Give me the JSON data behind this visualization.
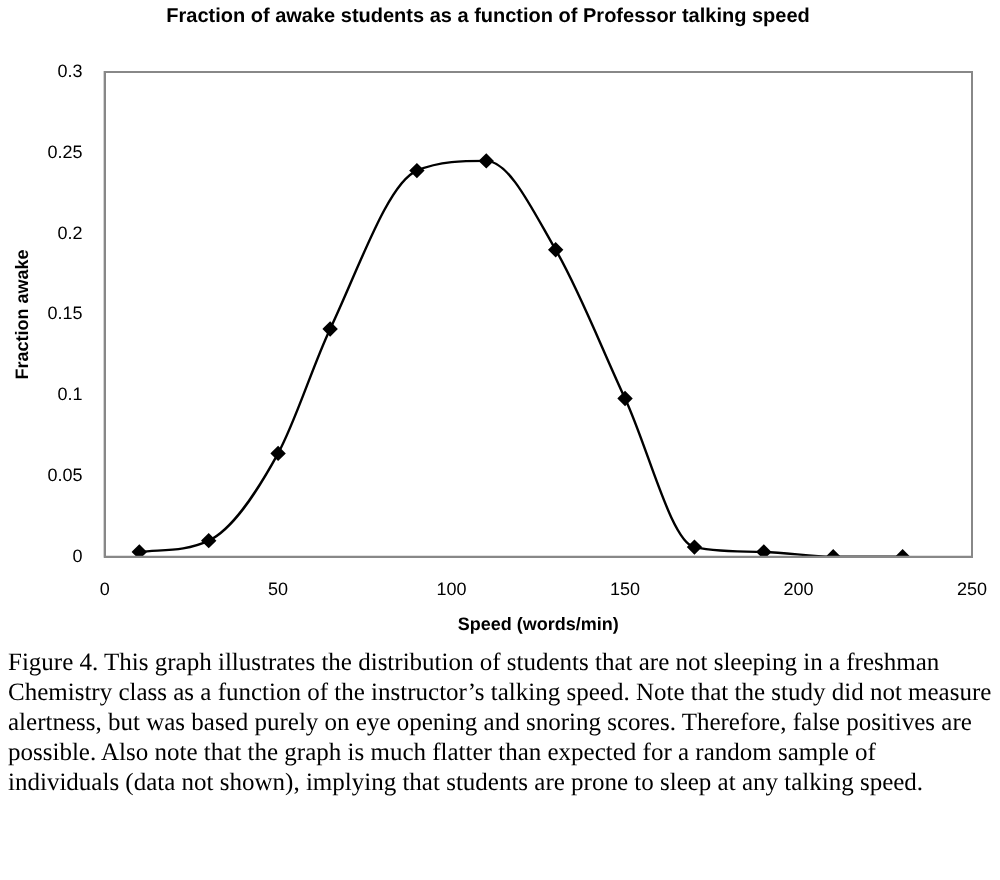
{
  "chart_data": {
    "type": "line",
    "title": "Fraction of awake students as a function of Professor talking speed",
    "xlabel": "Speed (words/min)",
    "ylabel": "Fraction awake",
    "x": [
      10,
      30,
      50,
      65,
      90,
      110,
      130,
      150,
      170,
      190,
      210,
      230
    ],
    "series": [
      {
        "color": "#000000",
        "values": [
          0.003,
          0.01,
          0.064,
          0.141,
          0.239,
          0.245,
          0.19,
          0.098,
          0.006,
          0.003,
          0,
          0
        ]
      }
    ],
    "xlim": [
      0,
      250
    ],
    "xticks": [
      0,
      50,
      100,
      150,
      200,
      250
    ],
    "ylim": [
      0,
      0.3
    ],
    "yticks": [
      0,
      0.05,
      0.1,
      0.15,
      0.2,
      0.25,
      0.3
    ],
    "grid": false,
    "legend": false,
    "marker": "diamond",
    "line_style": "solid",
    "annotations": [
      "Figure 4. This graph illustrates the distribution of students that are not sleeping in a freshman Chemistry class as a function of the instructor’s talking speed. Note that the study did not measure alertness, but was based purely on eye opening and snoring scores. Therefore, false positives are possible. Also note that the graph is much flatter than expected for a random sample of individuals (data not shown), implying that students are prone to sleep at any talking speed."
    ]
  }
}
